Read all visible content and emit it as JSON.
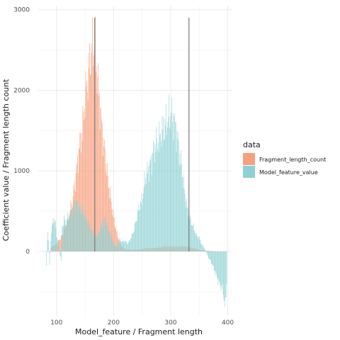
{
  "chart_data": {
    "type": "bar",
    "xlabel": "Model_feature / Fragment length",
    "ylabel": "Coefficient value / Fragment length count",
    "xlim": [
      68,
      408
    ],
    "ylim": [
      -800,
      3050
    ],
    "x_ticks": [
      100,
      200,
      300,
      400
    ],
    "y_ticks": [
      0,
      1000,
      2000,
      3000
    ],
    "x_tick_labels": [
      "100",
      "200",
      "300",
      "400"
    ],
    "y_tick_labels": [
      "0",
      "1000",
      "2000",
      "3000"
    ],
    "grid": true,
    "legend": {
      "title": "data",
      "position": "right",
      "entries": [
        {
          "label": "Fragment_length_count",
          "color": "#F8A07E"
        },
        {
          "label": "Model_feature_value",
          "color": "#8ED0D3"
        }
      ]
    },
    "vlines": [
      167,
      332
    ],
    "series": [
      {
        "name": "Fragment_length_count",
        "color": "#F8A07E",
        "points": [
          [
            90,
            50
          ],
          [
            100,
            90
          ],
          [
            110,
            200
          ],
          [
            120,
            400
          ],
          [
            128,
            620
          ],
          [
            135,
            1000
          ],
          [
            140,
            1300
          ],
          [
            145,
            1500
          ],
          [
            150,
            1900
          ],
          [
            155,
            2150
          ],
          [
            160,
            2450
          ],
          [
            163,
            2500
          ],
          [
            166,
            2600
          ],
          [
            168,
            2500
          ],
          [
            170,
            2300
          ],
          [
            175,
            1900
          ],
          [
            180,
            1500
          ],
          [
            185,
            1200
          ],
          [
            190,
            900
          ],
          [
            195,
            650
          ],
          [
            200,
            420
          ],
          [
            205,
            250
          ],
          [
            210,
            120
          ],
          [
            215,
            60
          ],
          [
            220,
            30
          ],
          [
            230,
            20
          ],
          [
            240,
            20
          ],
          [
            250,
            30
          ],
          [
            260,
            40
          ],
          [
            270,
            40
          ],
          [
            280,
            50
          ],
          [
            290,
            60
          ],
          [
            300,
            60
          ],
          [
            310,
            60
          ],
          [
            320,
            60
          ],
          [
            330,
            60
          ],
          [
            340,
            40
          ],
          [
            350,
            20
          ],
          [
            360,
            10
          ],
          [
            370,
            5
          ],
          [
            380,
            0
          ],
          [
            390,
            0
          ]
        ]
      },
      {
        "name": "Model_feature_value",
        "color": "#8ED0D3",
        "points": [
          [
            82,
            -150
          ],
          [
            85,
            280
          ],
          [
            88,
            -170
          ],
          [
            90,
            150
          ],
          [
            92,
            300
          ],
          [
            95,
            420
          ],
          [
            98,
            350
          ],
          [
            100,
            200
          ],
          [
            103,
            120
          ],
          [
            106,
            -50
          ],
          [
            108,
            -100
          ],
          [
            110,
            300
          ],
          [
            113,
            400
          ],
          [
            116,
            350
          ],
          [
            120,
            420
          ],
          [
            124,
            480
          ],
          [
            128,
            520
          ],
          [
            132,
            600
          ],
          [
            136,
            600
          ],
          [
            140,
            550
          ],
          [
            145,
            520
          ],
          [
            150,
            450
          ],
          [
            155,
            350
          ],
          [
            160,
            280
          ],
          [
            165,
            200
          ],
          [
            170,
            200
          ],
          [
            175,
            260
          ],
          [
            180,
            350
          ],
          [
            185,
            400
          ],
          [
            190,
            300
          ],
          [
            195,
            200
          ],
          [
            200,
            100
          ],
          [
            205,
            60
          ],
          [
            210,
            150
          ],
          [
            215,
            120
          ],
          [
            220,
            130
          ],
          [
            225,
            100
          ],
          [
            230,
            160
          ],
          [
            235,
            250
          ],
          [
            240,
            400
          ],
          [
            245,
            560
          ],
          [
            250,
            640
          ],
          [
            255,
            900
          ],
          [
            260,
            1000
          ],
          [
            265,
            1100
          ],
          [
            270,
            1250
          ],
          [
            275,
            1350
          ],
          [
            280,
            1400
          ],
          [
            285,
            1500
          ],
          [
            290,
            1550
          ],
          [
            295,
            1650
          ],
          [
            300,
            1700
          ],
          [
            305,
            1650
          ],
          [
            310,
            1500
          ],
          [
            315,
            1250
          ],
          [
            320,
            1000
          ],
          [
            325,
            700
          ],
          [
            330,
            500
          ],
          [
            335,
            380
          ],
          [
            340,
            300
          ],
          [
            345,
            200
          ],
          [
            350,
            170
          ],
          [
            355,
            80
          ],
          [
            360,
            30
          ],
          [
            365,
            -60
          ],
          [
            370,
            -120
          ],
          [
            375,
            -200
          ],
          [
            380,
            -300
          ],
          [
            385,
            -400
          ],
          [
            390,
            -450
          ],
          [
            393,
            -550
          ],
          [
            396,
            -700
          ],
          [
            398,
            -400
          ]
        ]
      }
    ]
  }
}
